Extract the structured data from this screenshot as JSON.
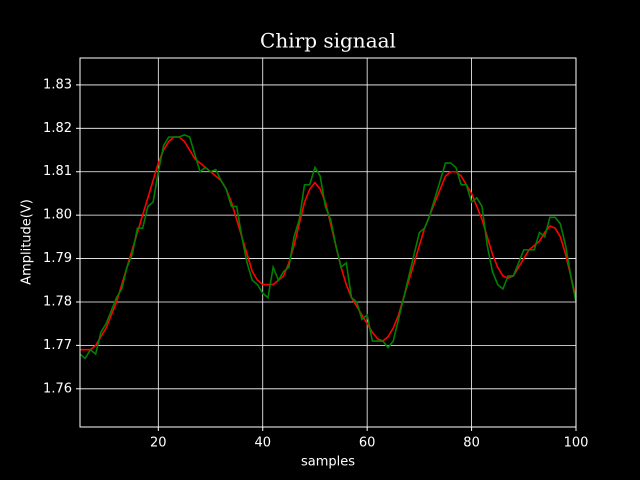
{
  "chart_data": {
    "type": "line",
    "title": "Chirp signaal",
    "xlabel": "samples",
    "ylabel": "Amplitude(V)",
    "x": [
      5,
      6,
      7,
      8,
      9,
      10,
      11,
      12,
      13,
      14,
      15,
      16,
      17,
      18,
      19,
      20,
      21,
      22,
      23,
      24,
      25,
      26,
      27,
      28,
      29,
      30,
      31,
      32,
      33,
      34,
      35,
      36,
      37,
      38,
      39,
      40,
      41,
      42,
      43,
      44,
      45,
      46,
      47,
      48,
      49,
      50,
      51,
      52,
      53,
      54,
      55,
      56,
      57,
      58,
      59,
      60,
      61,
      62,
      63,
      64,
      65,
      66,
      67,
      68,
      69,
      70,
      71,
      72,
      73,
      74,
      75,
      76,
      77,
      78,
      79,
      80,
      81,
      82,
      83,
      84,
      85,
      86,
      87,
      88,
      89,
      90,
      91,
      92,
      93,
      94,
      95,
      96,
      97,
      98,
      99,
      100
    ],
    "series": [
      {
        "color": "#ff0000",
        "values": [
          1.769,
          1.769,
          1.769,
          1.77,
          1.772,
          1.774,
          1.777,
          1.78,
          1.784,
          1.788,
          1.792,
          1.796,
          1.8,
          1.804,
          1.808,
          1.812,
          1.815,
          1.817,
          1.818,
          1.818,
          1.817,
          1.815,
          1.813,
          1.812,
          1.811,
          1.81,
          1.809,
          1.808,
          1.806,
          1.803,
          1.799,
          1.795,
          1.791,
          1.787,
          1.785,
          1.784,
          1.784,
          1.784,
          1.785,
          1.786,
          1.789,
          1.793,
          1.798,
          1.803,
          1.806,
          1.8075,
          1.806,
          1.803,
          1.798,
          1.793,
          1.788,
          1.784,
          1.781,
          1.779,
          1.777,
          1.775,
          1.773,
          1.7715,
          1.771,
          1.772,
          1.774,
          1.777,
          1.781,
          1.785,
          1.789,
          1.793,
          1.797,
          1.8,
          1.803,
          1.806,
          1.809,
          1.81,
          1.81,
          1.809,
          1.807,
          1.805,
          1.802,
          1.799,
          1.795,
          1.791,
          1.788,
          1.786,
          1.7855,
          1.786,
          1.788,
          1.79,
          1.792,
          1.793,
          1.794,
          1.796,
          1.7975,
          1.797,
          1.795,
          1.791,
          1.786,
          1.781
        ]
      },
      {
        "color": "#008000",
        "values": [
          1.768,
          1.767,
          1.769,
          1.768,
          1.773,
          1.775,
          1.778,
          1.781,
          1.783,
          1.788,
          1.791,
          1.797,
          1.797,
          1.802,
          1.803,
          1.81,
          1.816,
          1.818,
          1.818,
          1.818,
          1.8185,
          1.818,
          1.814,
          1.81,
          1.811,
          1.81,
          1.8105,
          1.808,
          1.806,
          1.802,
          1.802,
          1.795,
          1.789,
          1.785,
          1.784,
          1.782,
          1.781,
          1.788,
          1.785,
          1.787,
          1.788,
          1.795,
          1.799,
          1.807,
          1.807,
          1.811,
          1.809,
          1.802,
          1.799,
          1.793,
          1.788,
          1.789,
          1.781,
          1.78,
          1.776,
          1.777,
          1.771,
          1.771,
          1.771,
          1.7695,
          1.771,
          1.776,
          1.781,
          1.786,
          1.791,
          1.796,
          1.797,
          1.8,
          1.804,
          1.808,
          1.812,
          1.812,
          1.811,
          1.807,
          1.807,
          1.803,
          1.804,
          1.802,
          1.793,
          1.787,
          1.784,
          1.783,
          1.786,
          1.786,
          1.789,
          1.792,
          1.792,
          1.792,
          1.796,
          1.795,
          1.7995,
          1.7995,
          1.798,
          1.793,
          1.786,
          1.78
        ]
      }
    ],
    "xlim": [
      5,
      100
    ],
    "xticks": [
      20,
      40,
      60,
      80,
      100
    ],
    "ylim": [
      1.7512,
      1.8362
    ],
    "yticks": [
      1.76,
      1.77,
      1.78,
      1.79,
      {
        "value": 1.8,
        "label": "1.80"
      },
      1.81,
      1.82,
      1.83
    ],
    "grid": true
  }
}
